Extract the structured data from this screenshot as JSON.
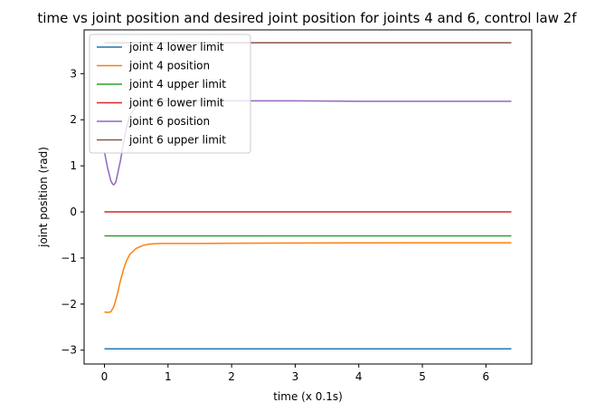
{
  "chart_data": {
    "type": "line",
    "title": "time vs joint position and desired joint position for joints 4 and 6, control law 2f",
    "xlabel": "time (x 0.1s)",
    "ylabel": "joint position (rad)",
    "xlim": [
      -0.32,
      6.72
    ],
    "ylim": [
      -3.3,
      3.95
    ],
    "xticks": [
      0,
      1,
      2,
      3,
      4,
      5,
      6
    ],
    "yticks": [
      -3,
      -2,
      -1,
      0,
      1,
      2,
      3
    ],
    "xtick_labels": [
      "0",
      "1",
      "2",
      "3",
      "4",
      "5",
      "6"
    ],
    "ytick_labels": [
      "−3",
      "−2",
      "−1",
      "0",
      "1",
      "2",
      "3"
    ],
    "grid": false,
    "legend_position": "top-left",
    "series": [
      {
        "name": "joint 4 lower limit",
        "color": "#1f77b4",
        "x": [
          0,
          6.4
        ],
        "y": [
          -2.97,
          -2.97
        ]
      },
      {
        "name": "joint 4 position",
        "color": "#ff7f0e",
        "x": [
          0,
          0.05,
          0.1,
          0.15,
          0.2,
          0.25,
          0.3,
          0.35,
          0.4,
          0.5,
          0.6,
          0.7,
          0.8,
          0.9,
          1.0,
          1.5,
          2.0,
          3.0,
          4.0,
          5.0,
          6.4
        ],
        "y": [
          -2.17,
          -2.18,
          -2.17,
          -2.05,
          -1.8,
          -1.5,
          -1.25,
          -1.05,
          -0.92,
          -0.79,
          -0.73,
          -0.7,
          -0.69,
          -0.685,
          -0.685,
          -0.685,
          -0.68,
          -0.675,
          -0.672,
          -0.67,
          -0.67
        ]
      },
      {
        "name": "joint 4 upper limit",
        "color": "#2ca02c",
        "x": [
          0,
          6.4
        ],
        "y": [
          -0.52,
          -0.52
        ]
      },
      {
        "name": "joint 6 lower limit",
        "color": "#d62728",
        "x": [
          0,
          6.4
        ],
        "y": [
          0.0,
          0.0
        ]
      },
      {
        "name": "joint 6 position",
        "color": "#9467bd",
        "x": [
          0,
          0.05,
          0.1,
          0.13,
          0.15,
          0.18,
          0.2,
          0.25,
          0.3,
          0.35,
          0.4,
          0.5,
          0.6,
          0.8,
          1.0,
          2.0,
          3.0,
          4.0,
          5.0,
          6.4
        ],
        "y": [
          1.3,
          0.95,
          0.68,
          0.6,
          0.59,
          0.65,
          0.78,
          1.1,
          1.5,
          1.85,
          2.1,
          2.3,
          2.38,
          2.41,
          2.41,
          2.41,
          2.41,
          2.4,
          2.4,
          2.4
        ]
      },
      {
        "name": "joint 6 upper limit",
        "color": "#8c564b",
        "x": [
          0,
          6.4
        ],
        "y": [
          3.67,
          3.67
        ]
      }
    ]
  }
}
